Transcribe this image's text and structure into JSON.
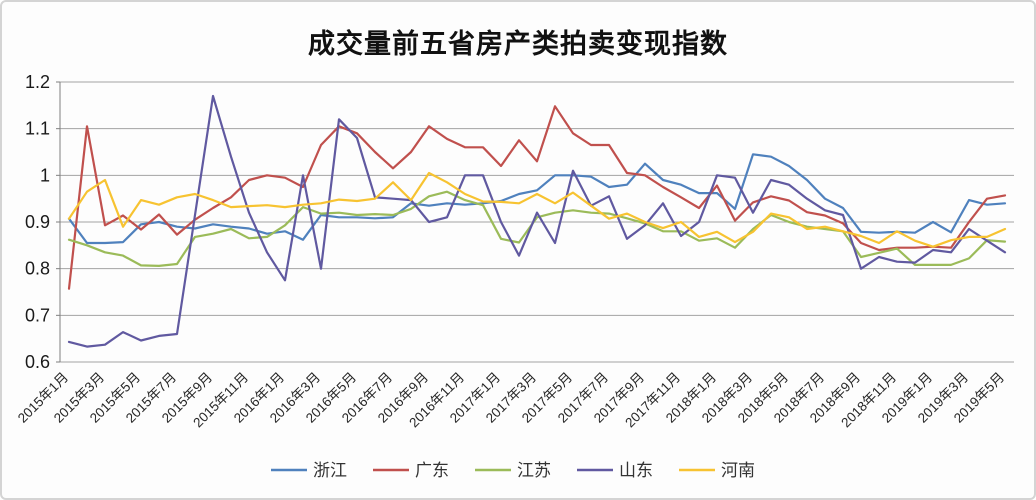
{
  "title": "成交量前五省房产类拍卖变现指数",
  "y_axis_labels": [
    "1.2",
    "1.1",
    "1",
    "0.9",
    "0.8",
    "0.7",
    "0.6"
  ],
  "chart_data": {
    "type": "line",
    "title": "成交量前五省房产类拍卖变现指数",
    "xlabel": "",
    "ylabel": "",
    "ylim": [
      0.6,
      1.2
    ],
    "ytick_step": 0.1,
    "grid": true,
    "legend_position": "bottom",
    "x_tick_step": 2,
    "x": [
      "2015年1月",
      "2015年2月",
      "2015年3月",
      "2015年4月",
      "2015年5月",
      "2015年6月",
      "2015年7月",
      "2015年8月",
      "2015年9月",
      "2015年10月",
      "2015年11月",
      "2015年12月",
      "2016年1月",
      "2016年2月",
      "2016年3月",
      "2016年4月",
      "2016年5月",
      "2016年6月",
      "2016年7月",
      "2016年8月",
      "2016年9月",
      "2016年10月",
      "2016年11月",
      "2016年12月",
      "2017年1月",
      "2017年2月",
      "2017年3月",
      "2017年4月",
      "2017年5月",
      "2017年6月",
      "2017年7月",
      "2017年8月",
      "2017年9月",
      "2017年10月",
      "2017年11月",
      "2017年12月",
      "2018年1月",
      "2018年2月",
      "2018年3月",
      "2018年4月",
      "2018年5月",
      "2018年6月",
      "2018年7月",
      "2018年8月",
      "2018年9月",
      "2018年10月",
      "2018年11月",
      "2018年12月",
      "2019年1月",
      "2019年2月",
      "2019年3月",
      "2019年4月",
      "2019年5月"
    ],
    "series": [
      {
        "name": "浙江",
        "color": "#4F81BD",
        "values": [
          0.907,
          0.855,
          0.855,
          0.857,
          0.895,
          0.9,
          0.89,
          0.886,
          0.895,
          0.89,
          0.886,
          0.875,
          0.88,
          0.862,
          0.915,
          0.91,
          0.91,
          0.908,
          0.91,
          0.94,
          0.935,
          0.94,
          0.937,
          0.94,
          0.945,
          0.96,
          0.968,
          1.0,
          1.0,
          0.997,
          0.975,
          0.98,
          1.025,
          0.99,
          0.98,
          0.962,
          0.962,
          0.928,
          1.045,
          1.04,
          1.02,
          0.99,
          0.95,
          0.93,
          0.879,
          0.877,
          0.879,
          0.877,
          0.9,
          0.878,
          0.947,
          0.937,
          0.94
        ]
      },
      {
        "name": "广东",
        "color": "#C0504D",
        "values": [
          0.757,
          1.105,
          0.893,
          0.914,
          0.884,
          0.916,
          0.873,
          0.905,
          0.93,
          0.953,
          0.99,
          1.0,
          0.995,
          0.975,
          1.065,
          1.105,
          1.09,
          1.05,
          1.015,
          1.05,
          1.105,
          1.078,
          1.06,
          1.06,
          1.02,
          1.075,
          1.03,
          1.148,
          1.09,
          1.065,
          1.065,
          1.005,
          1.0,
          0.975,
          0.953,
          0.93,
          0.978,
          0.903,
          0.942,
          0.955,
          0.946,
          0.921,
          0.914,
          0.897,
          0.855,
          0.84,
          0.845,
          0.845,
          0.847,
          0.845,
          0.9,
          0.95,
          0.957
        ]
      },
      {
        "name": "江苏",
        "color": "#9BBB59",
        "values": [
          0.862,
          0.85,
          0.835,
          0.828,
          0.807,
          0.806,
          0.81,
          0.868,
          0.875,
          0.885,
          0.865,
          0.868,
          0.893,
          0.932,
          0.918,
          0.92,
          0.915,
          0.917,
          0.915,
          0.928,
          0.955,
          0.965,
          0.947,
          0.936,
          0.864,
          0.856,
          0.91,
          0.92,
          0.925,
          0.92,
          0.918,
          0.908,
          0.897,
          0.88,
          0.88,
          0.86,
          0.865,
          0.845,
          0.885,
          0.915,
          0.9,
          0.89,
          0.885,
          0.88,
          0.825,
          0.834,
          0.843,
          0.808,
          0.808,
          0.808,
          0.822,
          0.861,
          0.858
        ]
      },
      {
        "name": "山东",
        "color": "#6059A0",
        "values": [
          0.643,
          0.633,
          0.637,
          0.664,
          0.646,
          0.656,
          0.66,
          0.915,
          1.17,
          1.04,
          0.92,
          0.835,
          0.775,
          1.0,
          0.8,
          1.12,
          1.08,
          0.953,
          0.95,
          0.947,
          0.9,
          0.91,
          1.0,
          1.0,
          0.9,
          0.828,
          0.92,
          0.855,
          1.01,
          0.935,
          0.955,
          0.864,
          0.893,
          0.94,
          0.87,
          0.9,
          1.0,
          0.995,
          0.92,
          0.99,
          0.98,
          0.95,
          0.925,
          0.915,
          0.8,
          0.825,
          0.815,
          0.813,
          0.84,
          0.835,
          0.885,
          0.86,
          0.835
        ]
      },
      {
        "name": "河南",
        "color": "#F7C331",
        "values": [
          0.907,
          0.965,
          0.99,
          0.89,
          0.947,
          0.937,
          0.953,
          0.96,
          0.947,
          0.932,
          0.934,
          0.936,
          0.932,
          0.937,
          0.94,
          0.948,
          0.945,
          0.95,
          0.985,
          0.947,
          1.005,
          0.985,
          0.96,
          0.944,
          0.943,
          0.94,
          0.96,
          0.94,
          0.963,
          0.935,
          0.907,
          0.918,
          0.9,
          0.887,
          0.9,
          0.868,
          0.879,
          0.857,
          0.879,
          0.918,
          0.91,
          0.885,
          0.89,
          0.88,
          0.87,
          0.855,
          0.88,
          0.86,
          0.847,
          0.861,
          0.868,
          0.868,
          0.885
        ]
      }
    ],
    "style": {
      "gridline_color": "#A3A3A3",
      "axis_color": "#808080",
      "line_width": 2.2
    }
  }
}
